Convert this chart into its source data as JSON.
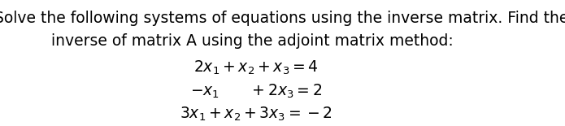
{
  "background_color": "#ffffff",
  "text_line1": "Solve the following systems of equations using the inverse matrix. Find the",
  "text_line2": "inverse of matrix A using the adjoint matrix method:",
  "eq1": "$2x_1 + x_2 + x_3 = 4$",
  "eq2": "$-x_1 \\qquad + 2x_3 = 2$",
  "eq3": "$3x_1 + x_2 + 3x_3 = -2$",
  "font_size_text": 13.5,
  "font_size_eq": 13.5,
  "text_color": "#000000"
}
